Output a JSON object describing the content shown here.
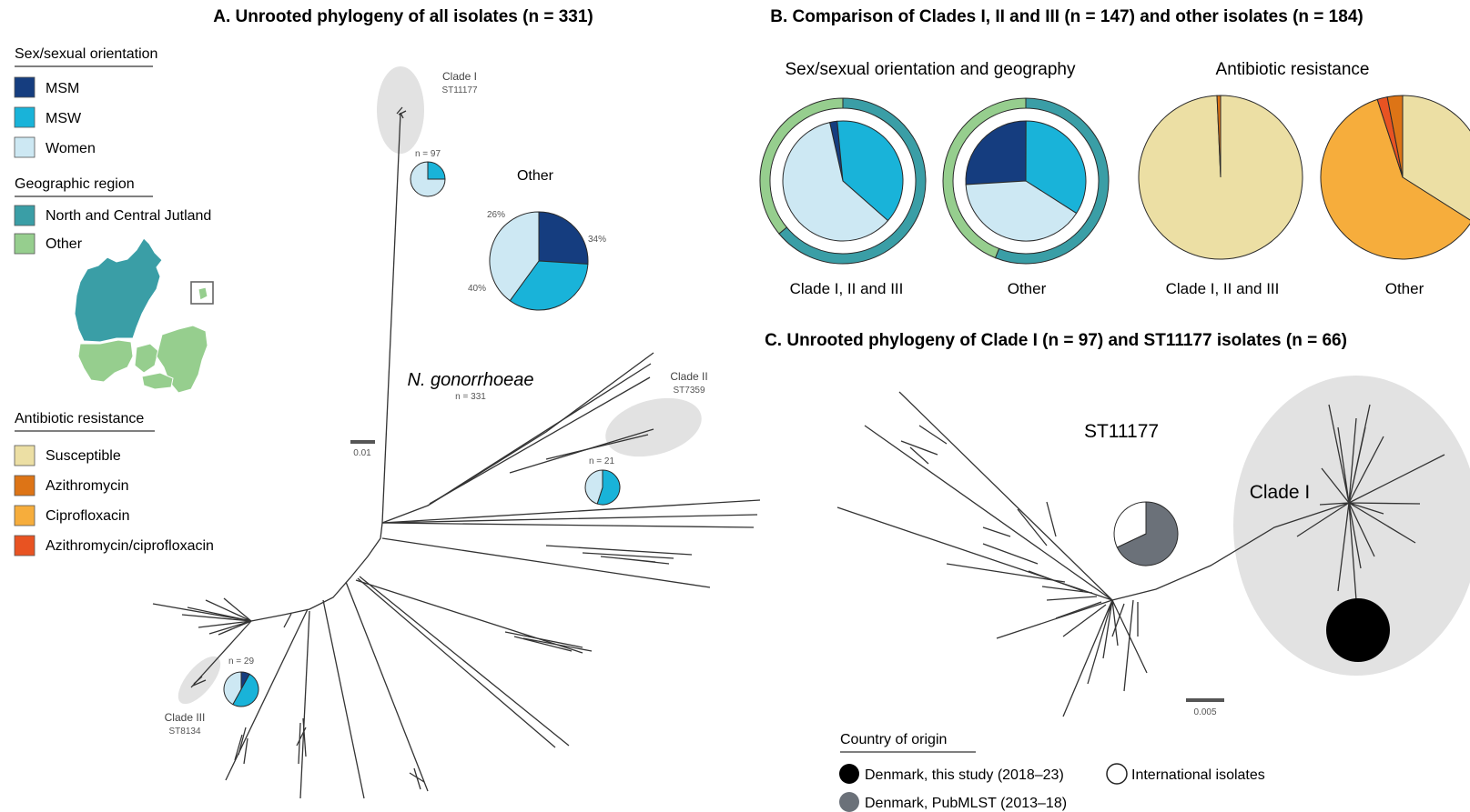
{
  "panel_a": {
    "title": "A. Unrooted phylogeny of all isolates (n = 331)",
    "tree_label": "N. gonorrhoeae",
    "tree_n": "n = 331",
    "scale": "0.01",
    "clade1": {
      "name": "Clade I",
      "st": "ST11177",
      "n": "n = 97"
    },
    "clade2": {
      "name": "Clade II",
      "st": "ST7359",
      "n": "n = 21"
    },
    "clade3": {
      "name": "Clade III",
      "st": "ST8134",
      "n": "n = 29"
    },
    "other": {
      "title": "Other",
      "pct_msm": "26%",
      "pct_msw": "34%",
      "pct_women": "40%"
    }
  },
  "legend": {
    "sex_title": "Sex/sexual orientation",
    "sex_items": [
      "MSM",
      "MSW",
      "Women"
    ],
    "geo_title": "Geographic region",
    "geo_items": [
      "North and Central Jutland",
      "Other"
    ],
    "amr_title": "Antibiotic resistance",
    "amr_items": [
      "Susceptible",
      "Azithromycin",
      "Ciprofloxacin",
      "Azithromycin/ciprofloxacin"
    ]
  },
  "panel_b": {
    "title": "B.  Comparison of Clades I, II and III (n = 147) and other isolates (n = 184)",
    "sub1": "Sex/sexual orientation and geography",
    "sub2": "Antibiotic resistance",
    "labels": [
      "Clade I, II and III",
      "Other",
      "Clade I, II and III",
      "Other"
    ]
  },
  "panel_c": {
    "title": "C. Unrooted phylogeny of Clade I (n = 97) and ST11177 isolates (n = 66)",
    "st_label": "ST11177",
    "clade_label": "Clade I",
    "scale": "0.005",
    "legend_title": "Country of origin",
    "origin": [
      "Denmark, this study (2018–23)",
      "International isolates",
      "Denmark, PubMLST (2013–18)"
    ]
  },
  "colors": {
    "msm": "#153d7f",
    "msw": "#19b3d9",
    "women": "#cde8f3",
    "jutland": "#3a9ea6",
    "geo_other": "#96ce8e",
    "susceptible": "#ecdfa4",
    "azithromycin": "#dd7416",
    "ciprofloxacin": "#f6ad3c",
    "azi_cipro": "#e85322",
    "pubmlst": "#6b7179",
    "this_study": "#000000"
  },
  "chart_data": [
    {
      "type": "pie",
      "title": "Other",
      "categories": [
        "MSM",
        "MSW",
        "Women"
      ],
      "values": [
        26,
        34,
        40
      ]
    },
    {
      "type": "pie",
      "title": "Clade I, II and III",
      "inner_categories": [
        "MSM",
        "MSW",
        "Women"
      ],
      "inner_values": [
        2,
        38,
        60
      ],
      "outer_categories": [
        "North and Central Jutland",
        "Other"
      ],
      "outer_values": [
        64,
        36
      ]
    },
    {
      "type": "pie",
      "title": "Other",
      "inner_categories": [
        "MSM",
        "MSW",
        "Women"
      ],
      "inner_values": [
        26,
        34,
        40
      ],
      "outer_categories": [
        "North and Central Jutland",
        "Other"
      ],
      "outer_values": [
        56,
        44
      ]
    },
    {
      "type": "pie",
      "title": "Clade I, II and III",
      "categories": [
        "Susceptible",
        "Azithromycin"
      ],
      "values": [
        99.3,
        0.7
      ]
    },
    {
      "type": "pie",
      "title": "Other",
      "categories": [
        "Susceptible",
        "Ciprofloxacin",
        "Azithromycin/ciprofloxacin",
        "Azithromycin"
      ],
      "values": [
        34,
        61,
        2,
        3
      ]
    },
    {
      "type": "pie",
      "title": "ST11177",
      "categories": [
        "Denmark, PubMLST (2013–18)",
        "International isolates"
      ],
      "values": [
        68,
        32
      ]
    }
  ]
}
